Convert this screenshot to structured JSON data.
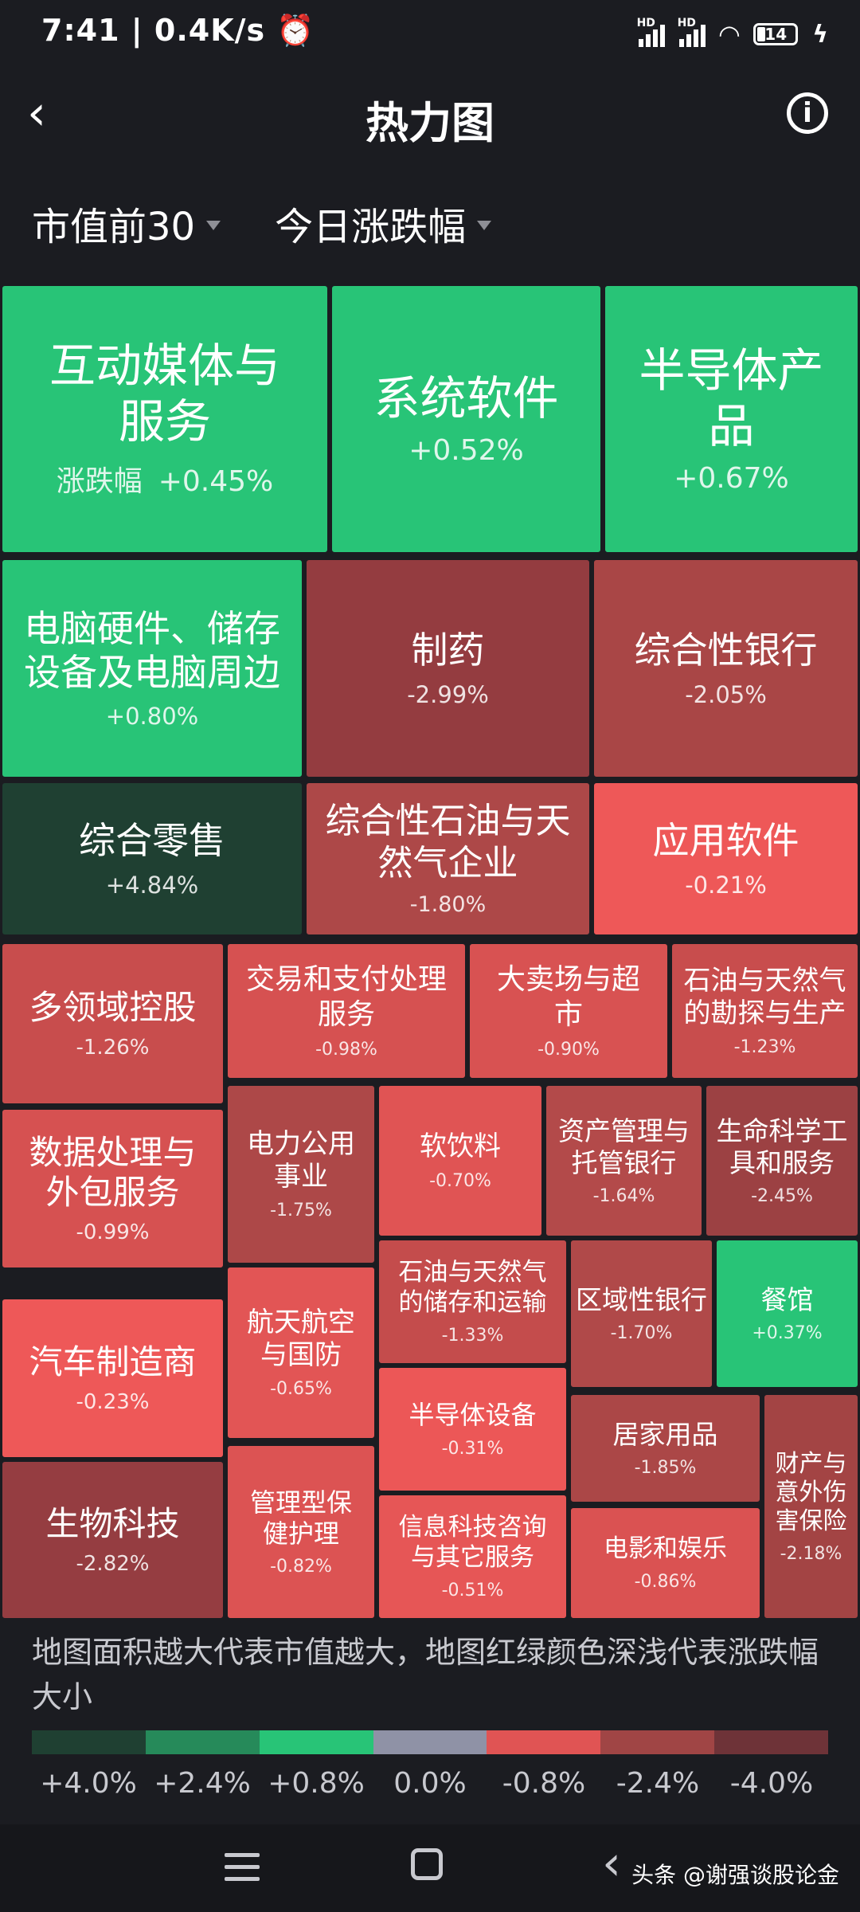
{
  "status_bar": {
    "time": "7:41",
    "net_speed": "0.4K/s",
    "battery": "14",
    "signal_label": "HD",
    "icons": [
      "alarm-icon",
      "signal-icon",
      "wifi-icon",
      "battery-icon",
      "charging-icon"
    ]
  },
  "header": {
    "title": "热力图",
    "back_icon": "chevron-left-icon",
    "info_icon": "info-icon"
  },
  "filters": [
    {
      "label": "市值前30"
    },
    {
      "label": "今日涨跌幅"
    }
  ],
  "change_label": "涨跌幅",
  "tiles": [
    {
      "name": "互动媒体与\n服务",
      "change": "+0.45%",
      "color": "#28c477",
      "show_label": true
    },
    {
      "name": "系统软件",
      "change": "+0.52%",
      "color": "#28c477"
    },
    {
      "name": "半导体产\n品",
      "change": "+0.67%",
      "color": "#28c477"
    },
    {
      "name": "电脑硬件、储存\n设备及电脑周边",
      "change": "+0.80%",
      "color": "#28c477"
    },
    {
      "name": "制药",
      "change": "-2.99%",
      "color": "#943c40"
    },
    {
      "name": "综合性银行",
      "change": "-2.05%",
      "color": "#a94646"
    },
    {
      "name": "综合零售",
      "change": "+4.84%",
      "color": "#1f4032"
    },
    {
      "name": "综合性石油与天\n然气企业",
      "change": "-1.80%",
      "color": "#ad4848"
    },
    {
      "name": "应用软件",
      "change": "-0.21%",
      "color": "#ee5858"
    },
    {
      "name": "多领域控股",
      "change": "-1.26%",
      "color": "#c84d4d"
    },
    {
      "name": "交易和支付处理\n服务",
      "change": "-0.98%",
      "color": "#d65151"
    },
    {
      "name": "大卖场与超\n市",
      "change": "-0.90%",
      "color": "#d85252"
    },
    {
      "name": "石油与天然气\n的勘探与生产",
      "change": "-1.23%",
      "color": "#c84d4d"
    },
    {
      "name": "数据处理与\n外包服务",
      "change": "-0.99%",
      "color": "#d65151"
    },
    {
      "name": "电力公用\n事业",
      "change": "-1.75%",
      "color": "#ad4848"
    },
    {
      "name": "软饮料",
      "change": "-0.70%",
      "color": "#e05454"
    },
    {
      "name": "资产管理与\n托管银行",
      "change": "-1.64%",
      "color": "#b34a4a"
    },
    {
      "name": "生命科学工\n具和服务",
      "change": "-2.45%",
      "color": "#9c4143"
    },
    {
      "name": "汽车制造商",
      "change": "-0.23%",
      "color": "#ee5858"
    },
    {
      "name": "航天航空\n与国防",
      "change": "-0.65%",
      "color": "#e25555"
    },
    {
      "name": "石油与天然气\n的储存和运输",
      "change": "-1.33%",
      "color": "#c44c4c"
    },
    {
      "name": "区域性银行",
      "change": "-1.70%",
      "color": "#b04949"
    },
    {
      "name": "餐馆",
      "change": "+0.37%",
      "color": "#28c477"
    },
    {
      "name": "生物科技",
      "change": "-2.82%",
      "color": "#953d41"
    },
    {
      "name": "管理型保\n健护理",
      "change": "-0.82%",
      "color": "#dc5353"
    },
    {
      "name": "半导体设备",
      "change": "-0.31%",
      "color": "#ec5757"
    },
    {
      "name": "居家用品",
      "change": "-1.85%",
      "color": "#ab4747"
    },
    {
      "name": "财产与\n意外伤\n害保险",
      "change": "-2.18%",
      "color": "#a34444"
    },
    {
      "name": "信息科技咨询\n与其它服务",
      "change": "-0.51%",
      "color": "#e65656"
    },
    {
      "name": "电影和娱乐",
      "change": "-0.86%",
      "color": "#da5252"
    }
  ],
  "note": "地图面积越大代表市值越大，地图红绿颜色深浅代表涨跌幅大小",
  "legend": [
    {
      "label": "+4.0%",
      "color": "#1f4032"
    },
    {
      "label": "+2.4%",
      "color": "#268a5a"
    },
    {
      "label": "+0.8%",
      "color": "#28c477"
    },
    {
      "label": "0.0%",
      "color": "#8f92a6"
    },
    {
      "label": "-0.8%",
      "color": "#e05454"
    },
    {
      "label": "-2.4%",
      "color": "#a04545"
    },
    {
      "label": "-4.0%",
      "color": "#6e3338"
    }
  ],
  "watermark": "头条 @谢强谈股论金"
}
